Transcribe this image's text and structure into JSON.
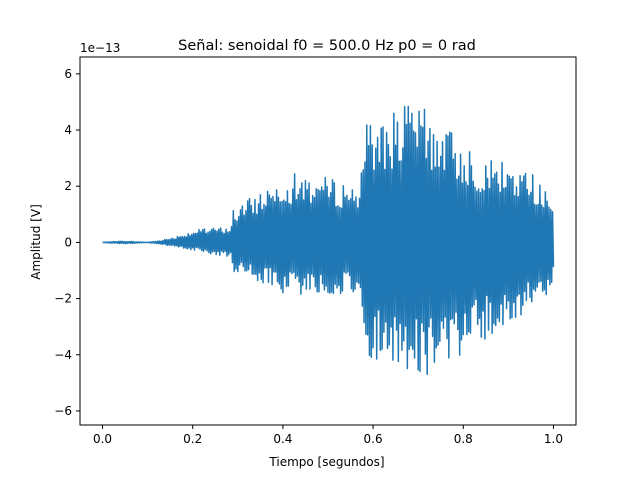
{
  "chart_data": {
    "type": "line",
    "title": "Señal: senoidal f0 = 500.0 Hz p0 = 0 rad",
    "xlabel": "Tiempo [segundos]",
    "ylabel": "Amplitud [V]",
    "y_offset_label": "1e−13",
    "xlim": [
      -0.05,
      1.05
    ],
    "ylim": [
      -6.5,
      6.6
    ],
    "y_scale_note": "y values in units of 1e-13 V",
    "xticks": [
      0.0,
      0.2,
      0.4,
      0.6,
      0.8,
      1.0
    ],
    "xtick_labels": [
      "0.0",
      "0.2",
      "0.4",
      "0.6",
      "0.8",
      "1.0"
    ],
    "yticks": [
      -6,
      -4,
      -2,
      0,
      2,
      4,
      6
    ],
    "ytick_labels": [
      "−6",
      "−4",
      "−2",
      "0",
      "2",
      "4",
      "6"
    ],
    "grid": false,
    "line_color": "#1f77b4",
    "signal": {
      "samples": 500,
      "f0_hz": 500.0,
      "phase_rad": 0,
      "envelope_breakpoints": [
        {
          "t": 0.0,
          "max": 0.0,
          "min": 0.0
        },
        {
          "t": 0.05,
          "max": 0.3,
          "min": -0.3
        },
        {
          "t": 0.1,
          "max": 0.5,
          "min": -0.55
        },
        {
          "t": 0.2,
          "max": 1.3,
          "min": -0.9
        },
        {
          "t": 0.285,
          "max": 1.0,
          "min": -1.0
        },
        {
          "t": 0.29,
          "max": 2.05,
          "min": -1.85
        },
        {
          "t": 0.4,
          "max": 3.0,
          "min": -2.2
        },
        {
          "t": 0.57,
          "max": 2.0,
          "min": -1.8
        },
        {
          "t": 0.575,
          "max": 4.1,
          "min": -4.1
        },
        {
          "t": 0.7,
          "max": 5.3,
          "min": -4.8
        },
        {
          "t": 0.72,
          "max": 5.0,
          "min": -5.2
        },
        {
          "t": 0.84,
          "max": 4.3,
          "min": -4.9
        },
        {
          "t": 0.9,
          "max": 4.8,
          "min": -5.0
        },
        {
          "t": 0.97,
          "max": 6.0,
          "min": -5.9
        },
        {
          "t": 1.0,
          "max": 4.0,
          "min": -5.3
        }
      ]
    }
  }
}
